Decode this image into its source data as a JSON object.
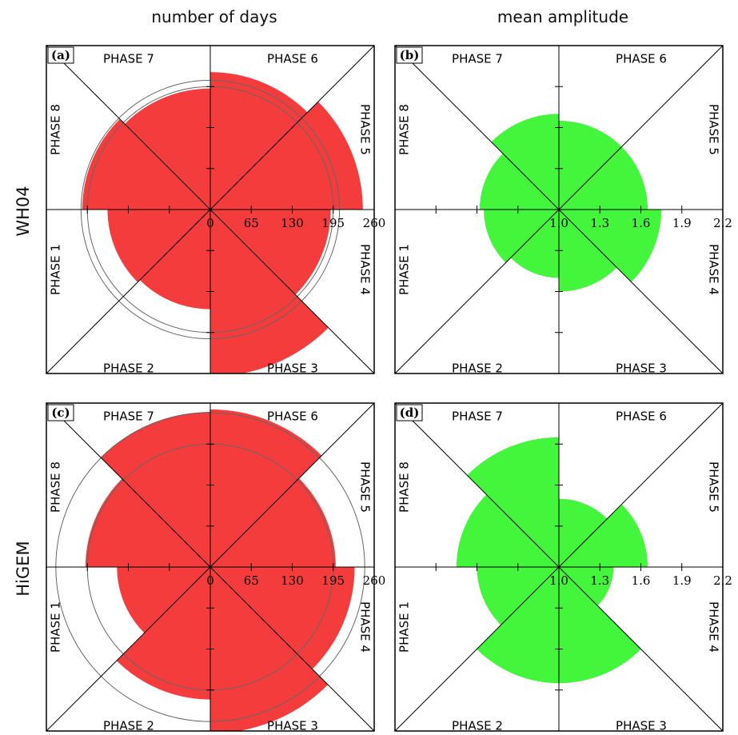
{
  "column_titles": [
    "number of days",
    "mean amplitude"
  ],
  "row_titles": [
    "WH04",
    "HiGEM"
  ],
  "colors": {
    "days": "#f53c3c",
    "amplitude": "#43f53b",
    "frame": "#000000",
    "rings": "#666666"
  },
  "chart_data": [
    {
      "type": "polar-bar",
      "panel_label": "(a)",
      "categories": [
        "PHASE 1",
        "PHASE 2",
        "PHASE 3",
        "PHASE 4",
        "PHASE 5",
        "PHASE 6",
        "PHASE 7",
        "PHASE 8"
      ],
      "values": [
        163,
        158,
        265,
        191,
        242,
        218,
        192,
        203
      ],
      "radial_ticks": [
        "0",
        "65",
        "130",
        "195",
        "260"
      ],
      "rmin": 0,
      "rmax": 260,
      "circles": [
        195,
        205
      ]
    },
    {
      "type": "polar-bar",
      "panel_label": "(b)",
      "categories": [
        "PHASE 1",
        "PHASE 2",
        "PHASE 3",
        "PHASE 4",
        "PHASE 5",
        "PHASE 6",
        "PHASE 7",
        "PHASE 8"
      ],
      "values": [
        1.55,
        1.5,
        1.6,
        1.75,
        1.65,
        1.65,
        1.7,
        1.58
      ],
      "radial_ticks": [
        "1.0",
        "1.3",
        "1.6",
        "1.9",
        "2.2"
      ],
      "rmin": 1.0,
      "rmax": 2.2,
      "circles": []
    },
    {
      "type": "polar-bar",
      "panel_label": "(c)",
      "categories": [
        "PHASE 1",
        "PHASE 2",
        "PHASE 3",
        "PHASE 4",
        "PHASE 5",
        "PHASE 6",
        "PHASE 7",
        "PHASE 8"
      ],
      "values": [
        148,
        210,
        264,
        229,
        199,
        250,
        246,
        198
      ],
      "radial_ticks": [
        "0",
        "65",
        "130",
        "195",
        "260"
      ],
      "rmin": 0,
      "rmax": 260,
      "circles": [
        195,
        245
      ]
    },
    {
      "type": "polar-bar",
      "panel_label": "(d)",
      "categories": [
        "PHASE 1",
        "PHASE 2",
        "PHASE 3",
        "PHASE 4",
        "PHASE 5",
        "PHASE 6",
        "PHASE 7",
        "PHASE 8"
      ],
      "values": [
        1.6,
        1.85,
        1.85,
        1.4,
        1.65,
        1.5,
        1.95,
        1.75
      ],
      "radial_ticks": [
        "1.0",
        "1.3",
        "1.6",
        "1.9",
        "2.2"
      ],
      "rmin": 1.0,
      "rmax": 2.2,
      "circles": []
    }
  ]
}
